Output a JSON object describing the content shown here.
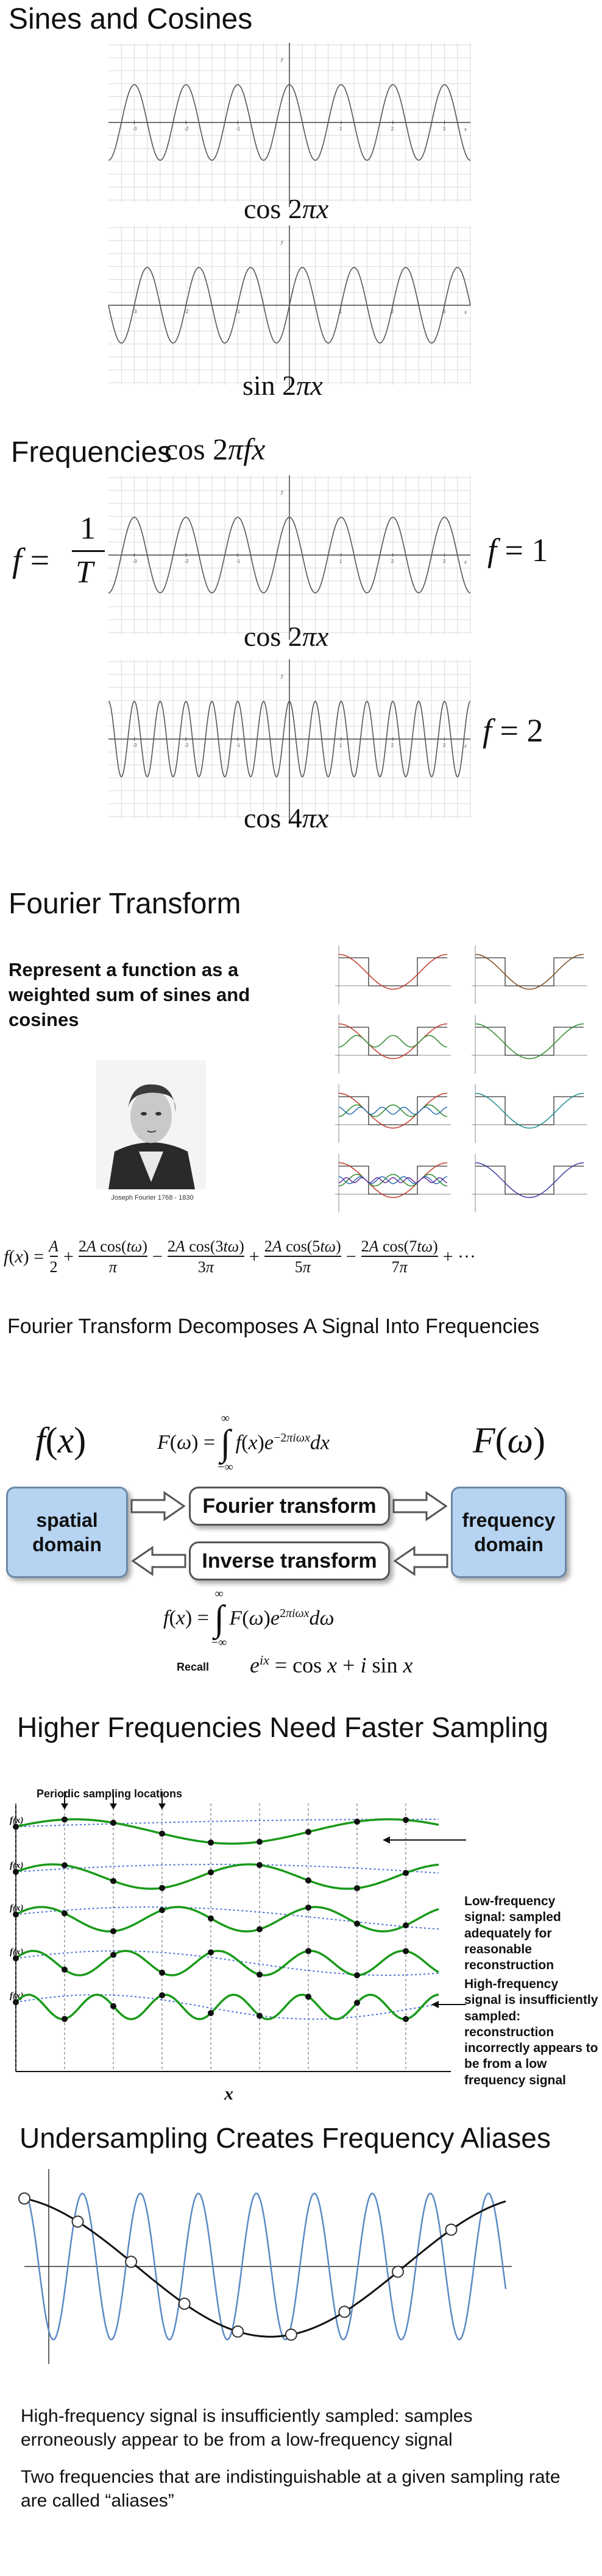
{
  "sines_cosines": {
    "title": "Sines and Cosines",
    "plot1_label": "cos 2πx",
    "plot2_label": "sin 2πx",
    "axis_y_label": "y",
    "axis_x_label": "x"
  },
  "frequencies": {
    "title": "Frequencies",
    "title_formula": "cos 2πfx",
    "f_def_lhs": "f =",
    "f_def_num": "1",
    "f_def_den": "T",
    "f1_label": "f = 1",
    "f2_label": "f = 2",
    "plot1_label": "cos 2πx",
    "plot2_label": "cos 4πx"
  },
  "fourier": {
    "title": "Fourier Transform",
    "description": "Represent a function as a weighted sum of sines and cosines",
    "portrait_caption": "Joseph Fourier 1768 - 1830",
    "series_formula": "f(x) = A/2 + 2A cos(tω)/π − 2A cos(3tω)/3π + 2A cos(5tω)/5π − 2A cos(7tω)/7π + ···"
  },
  "decompose": {
    "title": "Fourier Transform Decomposes A Signal Into Frequencies",
    "f_x": "f(x)",
    "F_w": "F(ω)",
    "forward_formula": "F(ω) = ∫ f(x) e^(−2πiωx) dx",
    "inverse_formula": "f(x) = ∫ F(ω) e^(2πiωx) dω",
    "spatial_domain": "spatial domain",
    "frequency_domain": "frequency domain",
    "fourier_transform": "Fourier transform",
    "inverse_transform": "Inverse transform",
    "recall_label": "Recall",
    "recall_formula": "e^(ix) = cos x + i sin x"
  },
  "sampling": {
    "title": "Higher Frequencies Need Faster Sampling",
    "periodic_label": "Periodic sampling locations",
    "row_label": "f(x)",
    "x_label": "x",
    "low_note": "Low-frequency signal: sampled adequately for reasonable reconstruction",
    "high_note": "High-frequency signal is insufficiently sampled: reconstruction incorrectly appears to be from a low frequency signal"
  },
  "aliases": {
    "title": "Undersampling Creates Frequency Aliases",
    "text1": "High-frequency signal is insufficiently sampled: samples erroneously appear to be from a low-frequency signal",
    "text2": "Two frequencies that are indistinguishable at a given sampling rate are called “aliases”"
  },
  "colors": {
    "grid": "#d9d9d9",
    "wave": "#555555",
    "green": "#1a9a1a",
    "blue_dotted": "#4a6fd8",
    "domain_box": "#b6d4f2",
    "alias_blue": "#5b8ac4"
  }
}
